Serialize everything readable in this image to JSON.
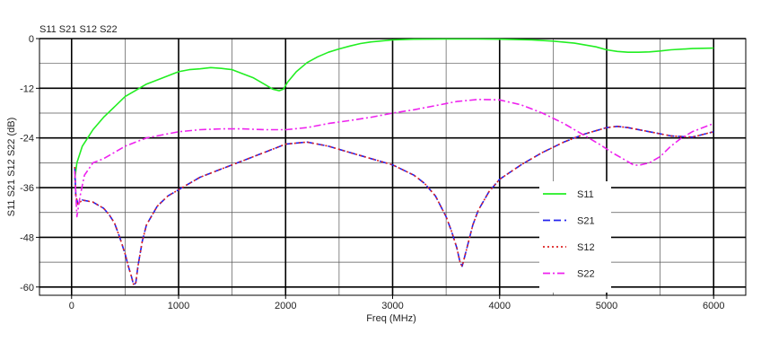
{
  "chart_data": {
    "type": "line",
    "title": "S11 S21 S12 S22",
    "xlabel": "Freq (MHz)",
    "ylabel": "S11 S21 S12 S22  (dB)",
    "xlim": [
      -300,
      6300
    ],
    "ylim": [
      -62,
      0
    ],
    "x_ticks": [
      0,
      1000,
      2000,
      3000,
      4000,
      5000,
      6000
    ],
    "x_tick_labels": [
      "0",
      "1000",
      "2000",
      "3000",
      "4000",
      "5000",
      "6000"
    ],
    "y_ticks": [
      0,
      -12,
      -24,
      -36,
      -48,
      -60
    ],
    "y_tick_labels": [
      "0",
      "-12",
      "-24",
      "-36",
      "-48",
      "-60"
    ],
    "grid": true,
    "legend_position": "bottom-right",
    "series": [
      {
        "name": "S11",
        "color": "#22ee22",
        "dash": "solid",
        "x": [
          30,
          50,
          100,
          150,
          200,
          300,
          400,
          500,
          600,
          700,
          800,
          900,
          1000,
          1100,
          1200,
          1300,
          1400,
          1500,
          1600,
          1700,
          1800,
          1880,
          1940,
          1980,
          2020,
          2100,
          2200,
          2300,
          2400,
          2500,
          2600,
          2700,
          2800,
          3000,
          3200,
          3500,
          3800,
          4000,
          4300,
          4500,
          4700,
          4900,
          5000,
          5100,
          5200,
          5300,
          5400,
          5500,
          5600,
          5800,
          6000
        ],
        "y": [
          -34,
          -30,
          -26,
          -24,
          -22,
          -19,
          -16.5,
          -14,
          -12.5,
          -11,
          -10,
          -9,
          -8,
          -7.5,
          -7.3,
          -7,
          -7.2,
          -7.5,
          -8.5,
          -9.5,
          -11,
          -12.2,
          -12.6,
          -12.2,
          -10.5,
          -8,
          -5.8,
          -4.4,
          -3.3,
          -2.5,
          -1.8,
          -1.2,
          -0.8,
          -0.3,
          -0.15,
          -0.1,
          -0.1,
          -0.15,
          -0.3,
          -0.6,
          -1.1,
          -2,
          -2.7,
          -3.1,
          -3.3,
          -3.3,
          -3.2,
          -3,
          -2.7,
          -2.4,
          -2.3
        ]
      },
      {
        "name": "S21",
        "color": "#2222ee",
        "dash": "8,4",
        "x": [
          30,
          40,
          60,
          100,
          200,
          300,
          350,
          400,
          450,
          500,
          530,
          560,
          580,
          600,
          620,
          660,
          700,
          800,
          900,
          1000,
          1200,
          1400,
          1600,
          1800,
          2000,
          2200,
          2400,
          2600,
          2800,
          3000,
          3200,
          3300,
          3400,
          3500,
          3550,
          3600,
          3630,
          3650,
          3670,
          3700,
          3750,
          3800,
          3900,
          4000,
          4200,
          4400,
          4600,
          4800,
          5000,
          5100,
          5200,
          5400,
          5600,
          5800,
          6000
        ],
        "y": [
          -31,
          -38,
          -40,
          -39,
          -39.5,
          -41,
          -42.5,
          -44.5,
          -48,
          -52,
          -55,
          -57.5,
          -59.5,
          -59,
          -55,
          -49,
          -45,
          -40.5,
          -38,
          -36.5,
          -33.5,
          -31.5,
          -29.5,
          -27.5,
          -25.5,
          -25,
          -26,
          -27.5,
          -29,
          -30.5,
          -33,
          -35,
          -38,
          -43,
          -46.5,
          -50.5,
          -54,
          -55,
          -53,
          -50,
          -45,
          -41.5,
          -37,
          -34,
          -30.5,
          -27.5,
          -25,
          -23,
          -21.5,
          -21.2,
          -21.5,
          -22.5,
          -23.5,
          -23.8,
          -22.5
        ]
      },
      {
        "name": "S12",
        "color": "#dd2222",
        "dash": "2,3",
        "x": [
          30,
          40,
          60,
          100,
          200,
          300,
          350,
          400,
          450,
          500,
          530,
          560,
          580,
          600,
          620,
          660,
          700,
          800,
          900,
          1000,
          1200,
          1400,
          1600,
          1800,
          2000,
          2200,
          2400,
          2600,
          2800,
          3000,
          3200,
          3300,
          3400,
          3500,
          3550,
          3600,
          3630,
          3650,
          3670,
          3700,
          3750,
          3800,
          3900,
          4000,
          4200,
          4400,
          4600,
          4800,
          5000,
          5100,
          5200,
          5400,
          5600,
          5800,
          6000
        ],
        "y": [
          -31,
          -38,
          -40,
          -39,
          -39.5,
          -41,
          -42.5,
          -44.5,
          -48,
          -52,
          -55,
          -57.5,
          -59.5,
          -59,
          -55,
          -49,
          -45,
          -40.5,
          -38,
          -36.5,
          -33.5,
          -31.5,
          -29.5,
          -27.5,
          -25.5,
          -25,
          -26,
          -27.5,
          -29,
          -30.5,
          -33,
          -35,
          -38,
          -43,
          -46.5,
          -50.5,
          -54,
          -55,
          -53,
          -50,
          -45,
          -41.5,
          -37,
          -34,
          -30.5,
          -27.5,
          -25,
          -23,
          -21.5,
          -21.2,
          -21.5,
          -22.5,
          -23.5,
          -23.8,
          -22.5
        ]
      },
      {
        "name": "S22",
        "color": "#ee22ee",
        "dash": "8,3,2,3",
        "x": [
          30,
          50,
          80,
          120,
          200,
          300,
          400,
          500,
          600,
          700,
          800,
          1000,
          1200,
          1400,
          1600,
          1800,
          2000,
          2200,
          2400,
          2600,
          2800,
          3000,
          3200,
          3400,
          3600,
          3800,
          4000,
          4200,
          4400,
          4600,
          4800,
          4950,
          5050,
          5150,
          5250,
          5300,
          5400,
          5500,
          5600,
          5700,
          5800,
          6000
        ],
        "y": [
          -32,
          -43,
          -38,
          -33,
          -30,
          -29,
          -27.5,
          -26,
          -25,
          -24,
          -23.5,
          -22.5,
          -22,
          -21.8,
          -21.8,
          -22,
          -22,
          -21.5,
          -20.5,
          -19.8,
          -19,
          -18,
          -17.2,
          -16.2,
          -15.2,
          -14.7,
          -14.8,
          -16,
          -18,
          -20.5,
          -23.5,
          -25.8,
          -27.5,
          -29,
          -30.5,
          -30.6,
          -30,
          -28.5,
          -26,
          -24,
          -22.5,
          -20.5
        ]
      }
    ]
  }
}
